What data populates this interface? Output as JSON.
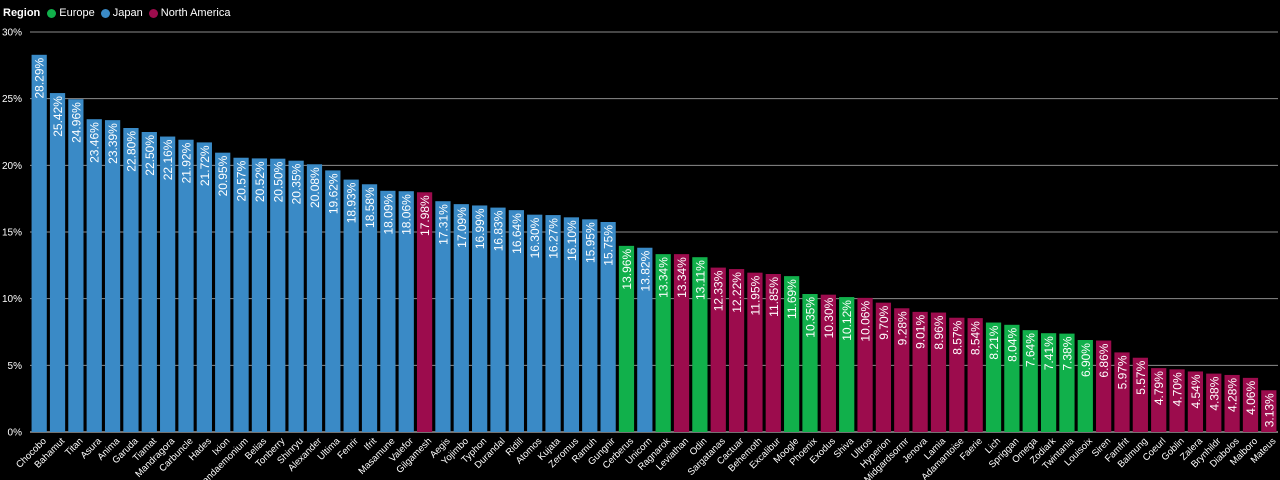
{
  "legend": {
    "title": "Region",
    "items": [
      {
        "label": "Europe",
        "color": "#11b04b"
      },
      {
        "label": "Japan",
        "color": "#3a8ac6"
      },
      {
        "label": "North America",
        "color": "#9c0c4d"
      }
    ]
  },
  "chart_data": {
    "type": "bar",
    "title": "",
    "xlabel": "",
    "ylabel": "",
    "ylim": [
      0,
      30
    ],
    "yticks": [
      "0%",
      "5%",
      "10%",
      "15%",
      "20%",
      "25%",
      "30%"
    ],
    "ytick_values": [
      0,
      5,
      10,
      15,
      20,
      25,
      30
    ],
    "grid": true,
    "legend_position": "top-left",
    "colors": {
      "Europe": "#11b04b",
      "Japan": "#3a8ac6",
      "North America": "#9c0c4d"
    },
    "bars": [
      {
        "name": "Chocobo",
        "value": 28.29,
        "label": "28.29%",
        "region": "Japan"
      },
      {
        "name": "Bahamut",
        "value": 25.42,
        "label": "25.42%",
        "region": "Japan"
      },
      {
        "name": "Titan",
        "value": 24.96,
        "label": "24.96%",
        "region": "Japan"
      },
      {
        "name": "Asura",
        "value": 23.46,
        "label": "23.46%",
        "region": "Japan"
      },
      {
        "name": "Anima",
        "value": 23.39,
        "label": "23.39%",
        "region": "Japan"
      },
      {
        "name": "Garuda",
        "value": 22.8,
        "label": "22.80%",
        "region": "Japan"
      },
      {
        "name": "Tiamat",
        "value": 22.5,
        "label": "22.50%",
        "region": "Japan"
      },
      {
        "name": "Mandragora",
        "value": 22.16,
        "label": "22.16%",
        "region": "Japan"
      },
      {
        "name": "Carbuncle",
        "value": 21.92,
        "label": "21.92%",
        "region": "Japan"
      },
      {
        "name": "Hades",
        "value": 21.72,
        "label": "21.72%",
        "region": "Japan"
      },
      {
        "name": "Ixion",
        "value": 20.95,
        "label": "20.95%",
        "region": "Japan"
      },
      {
        "name": "Pandaemonium",
        "value": 20.57,
        "label": "20.57%",
        "region": "Japan"
      },
      {
        "name": "Belias",
        "value": 20.52,
        "label": "20.52%",
        "region": "Japan"
      },
      {
        "name": "Tonberry",
        "value": 20.5,
        "label": "20.50%",
        "region": "Japan"
      },
      {
        "name": "Shinryu",
        "value": 20.35,
        "label": "20.35%",
        "region": "Japan"
      },
      {
        "name": "Alexander",
        "value": 20.08,
        "label": "20.08%",
        "region": "Japan"
      },
      {
        "name": "Ultima",
        "value": 19.62,
        "label": "19.62%",
        "region": "Japan"
      },
      {
        "name": "Fenrir",
        "value": 18.93,
        "label": "18.93%",
        "region": "Japan"
      },
      {
        "name": "Ifrit",
        "value": 18.58,
        "label": "18.58%",
        "region": "Japan"
      },
      {
        "name": "Masamune",
        "value": 18.09,
        "label": "18.09%",
        "region": "Japan"
      },
      {
        "name": "Valefor",
        "value": 18.06,
        "label": "18.06%",
        "region": "Japan"
      },
      {
        "name": "Gilgamesh",
        "value": 17.98,
        "label": "17.98%",
        "region": "North America"
      },
      {
        "name": "Aegis",
        "value": 17.31,
        "label": "17.31%",
        "region": "Japan"
      },
      {
        "name": "Yojimbo",
        "value": 17.09,
        "label": "17.09%",
        "region": "Japan"
      },
      {
        "name": "Typhon",
        "value": 16.99,
        "label": "16.99%",
        "region": "Japan"
      },
      {
        "name": "Durandal",
        "value": 16.83,
        "label": "16.83%",
        "region": "Japan"
      },
      {
        "name": "Ridill",
        "value": 16.64,
        "label": "16.64%",
        "region": "Japan"
      },
      {
        "name": "Atomos",
        "value": 16.3,
        "label": "16.30%",
        "region": "Japan"
      },
      {
        "name": "Kujata",
        "value": 16.27,
        "label": "16.27%",
        "region": "Japan"
      },
      {
        "name": "Zeromus",
        "value": 16.1,
        "label": "16.10%",
        "region": "Japan"
      },
      {
        "name": "Ramuh",
        "value": 15.95,
        "label": "15.95%",
        "region": "Japan"
      },
      {
        "name": "Gungnir",
        "value": 15.75,
        "label": "15.75%",
        "region": "Japan"
      },
      {
        "name": "Cerberus",
        "value": 13.96,
        "label": "13.96%",
        "region": "Europe"
      },
      {
        "name": "Unicorn",
        "value": 13.82,
        "label": "13.82%",
        "region": "Japan"
      },
      {
        "name": "Ragnarok",
        "value": 13.34,
        "label": "13.34%",
        "region": "Europe"
      },
      {
        "name": "Leviathan",
        "value": 13.34,
        "label": "13.34%",
        "region": "North America"
      },
      {
        "name": "Odin",
        "value": 13.11,
        "label": "13.11%",
        "region": "Europe"
      },
      {
        "name": "Sargatanas",
        "value": 12.33,
        "label": "12.33%",
        "region": "North America"
      },
      {
        "name": "Cactuar",
        "value": 12.22,
        "label": "12.22%",
        "region": "North America"
      },
      {
        "name": "Behemoth",
        "value": 11.95,
        "label": "11.95%",
        "region": "North America"
      },
      {
        "name": "Excalibur",
        "value": 11.85,
        "label": "11.85%",
        "region": "North America"
      },
      {
        "name": "Moogle",
        "value": 11.69,
        "label": "11.69%",
        "region": "Europe"
      },
      {
        "name": "Phoenix",
        "value": 10.35,
        "label": "10.35%",
        "region": "Europe"
      },
      {
        "name": "Exodus",
        "value": 10.3,
        "label": "10.30%",
        "region": "North America"
      },
      {
        "name": "Shiva",
        "value": 10.12,
        "label": "10.12%",
        "region": "Europe"
      },
      {
        "name": "Ultros",
        "value": 10.06,
        "label": "10.06%",
        "region": "North America"
      },
      {
        "name": "Hyperion",
        "value": 9.7,
        "label": "9.70%",
        "region": "North America"
      },
      {
        "name": "Midgardsormr",
        "value": 9.28,
        "label": "9.28%",
        "region": "North America"
      },
      {
        "name": "Jenova",
        "value": 9.01,
        "label": "9.01%",
        "region": "North America"
      },
      {
        "name": "Lamia",
        "value": 8.96,
        "label": "8.96%",
        "region": "North America"
      },
      {
        "name": "Adamantoise",
        "value": 8.57,
        "label": "8.57%",
        "region": "North America"
      },
      {
        "name": "Faerie",
        "value": 8.54,
        "label": "8.54%",
        "region": "North America"
      },
      {
        "name": "Lich",
        "value": 8.21,
        "label": "8.21%",
        "region": "Europe"
      },
      {
        "name": "Spriggan",
        "value": 8.04,
        "label": "8.04%",
        "region": "Europe"
      },
      {
        "name": "Omega",
        "value": 7.64,
        "label": "7.64%",
        "region": "Europe"
      },
      {
        "name": "Zodiark",
        "value": 7.41,
        "label": "7.41%",
        "region": "Europe"
      },
      {
        "name": "Twintania",
        "value": 7.38,
        "label": "7.38%",
        "region": "Europe"
      },
      {
        "name": "Louisoix",
        "value": 6.9,
        "label": "6.90%",
        "region": "Europe"
      },
      {
        "name": "Siren",
        "value": 6.86,
        "label": "6.86%",
        "region": "North America"
      },
      {
        "name": "Famfrit",
        "value": 5.97,
        "label": "5.97%",
        "region": "North America"
      },
      {
        "name": "Balmung",
        "value": 5.57,
        "label": "5.57%",
        "region": "North America"
      },
      {
        "name": "Coeurl",
        "value": 4.79,
        "label": "4.79%",
        "region": "North America"
      },
      {
        "name": "Goblin",
        "value": 4.7,
        "label": "4.70%",
        "region": "North America"
      },
      {
        "name": "Zalera",
        "value": 4.54,
        "label": "4.54%",
        "region": "North America"
      },
      {
        "name": "Brynhildr",
        "value": 4.38,
        "label": "4.38%",
        "region": "North America"
      },
      {
        "name": "Diabolos",
        "value": 4.28,
        "label": "4.28%",
        "region": "North America"
      },
      {
        "name": "Malboro",
        "value": 4.06,
        "label": "4.06%",
        "region": "North America"
      },
      {
        "name": "Mateus",
        "value": 3.13,
        "label": "3.13%",
        "region": "North America"
      }
    ]
  }
}
